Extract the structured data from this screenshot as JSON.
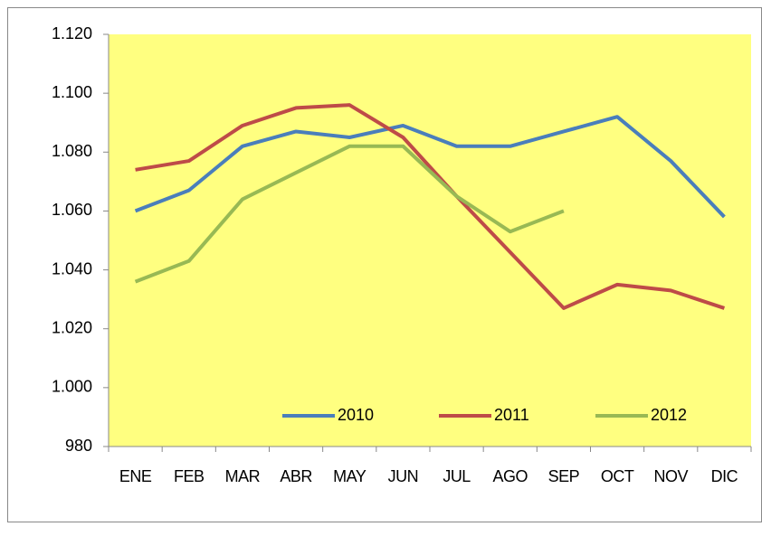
{
  "chart_data": {
    "type": "line",
    "categories": [
      "ENE",
      "FEB",
      "MAR",
      "ABR",
      "MAY",
      "JUN",
      "JUL",
      "AGO",
      "SEP",
      "OCT",
      "NOV",
      "DIC"
    ],
    "series": [
      {
        "name": "2010",
        "color": "#4a7ebb",
        "values": [
          1060,
          1067,
          1082,
          1087,
          1085,
          1089,
          1082,
          1082,
          1087,
          1092,
          1077,
          1058
        ]
      },
      {
        "name": "2011",
        "color": "#be4b48",
        "values": [
          1074,
          1077,
          1089,
          1095,
          1096,
          1085,
          1065,
          1046,
          1027,
          1035,
          1033,
          1027
        ]
      },
      {
        "name": "2012",
        "color": "#98b954",
        "values": [
          1036,
          1043,
          1064,
          1073,
          1082,
          1082,
          1065,
          1053,
          1060,
          null,
          null,
          null
        ]
      }
    ],
    "ylim": [
      980,
      1120
    ],
    "yticks": [
      980,
      {
        "value": 1000,
        "label": "1.000"
      },
      {
        "value": 1020,
        "label": "1.020"
      },
      {
        "value": 1040,
        "label": "1.040"
      },
      {
        "value": 1060,
        "label": "1.060"
      },
      {
        "value": 1080,
        "label": "1.080"
      },
      {
        "value": 1100,
        "label": "1.100"
      },
      {
        "value": 1120,
        "label": "1.120"
      }
    ],
    "plot_background": "#ffff80",
    "legend": "bottom"
  }
}
